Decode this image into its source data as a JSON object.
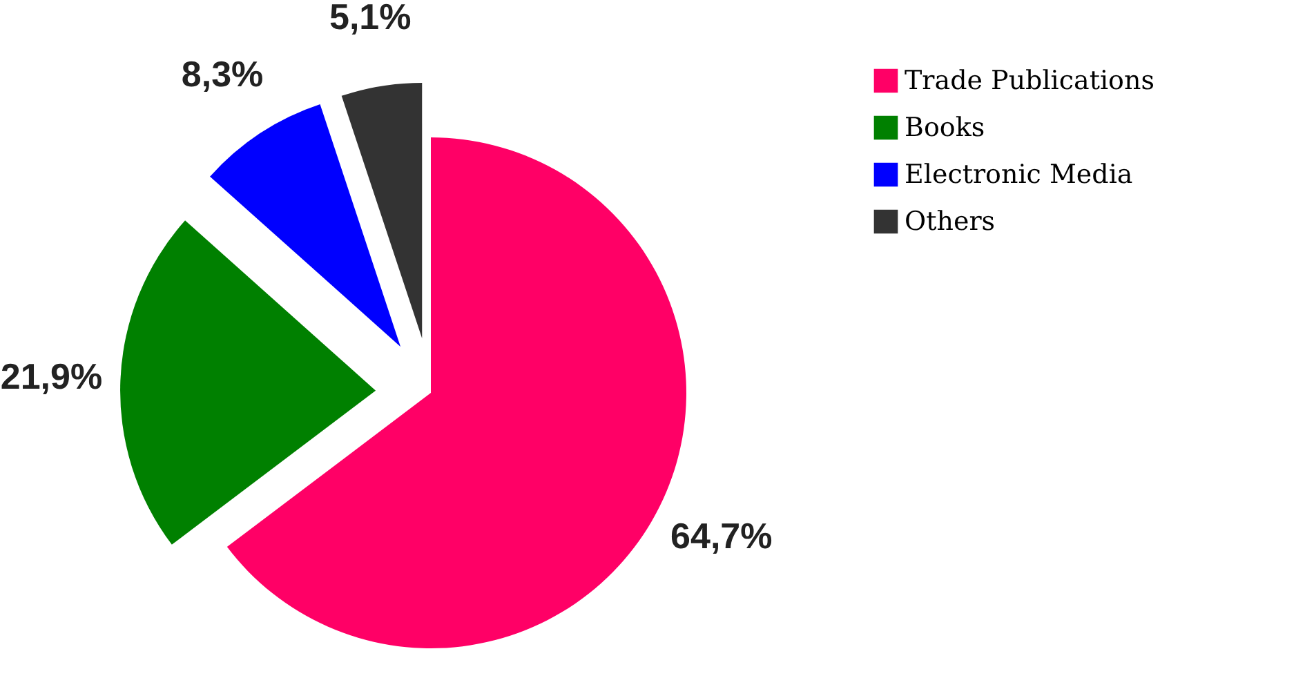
{
  "chart_data": {
    "type": "pie",
    "categories": [
      "Trade Publications",
      "Books",
      "Electronic Media",
      "Others"
    ],
    "values": [
      64.7,
      21.9,
      8.3,
      5.1
    ],
    "colors": [
      "#ff0066",
      "#008000",
      "#0000ff",
      "#333333"
    ],
    "value_labels": [
      "64,7%",
      "21,9%",
      "8,3%",
      "5,1%"
    ],
    "legend": "top right"
  }
}
